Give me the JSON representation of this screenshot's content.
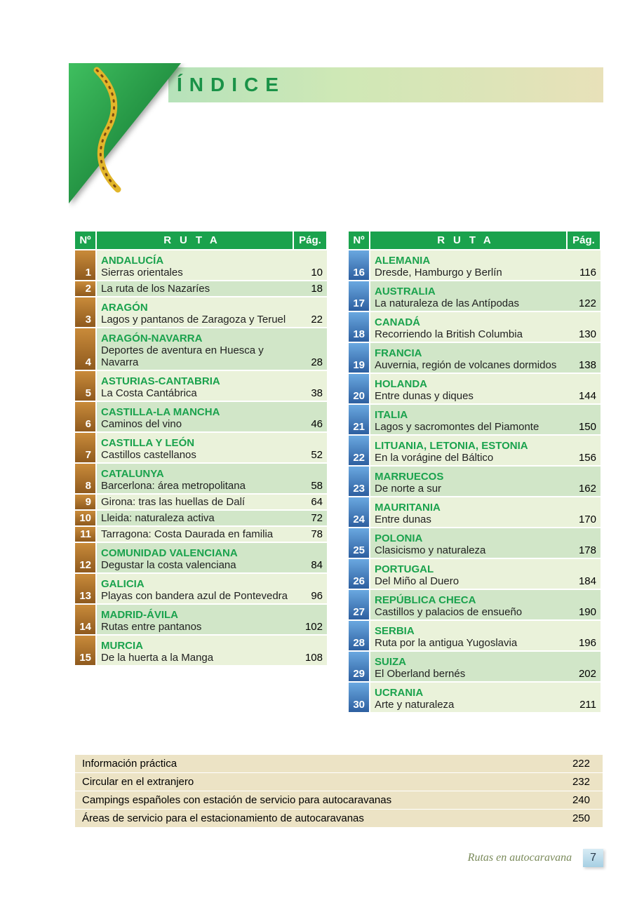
{
  "title": "ÍNDICE",
  "headers": {
    "num": "Nº",
    "ruta": "RUTA",
    "pag": "Pág."
  },
  "leftColumn": {
    "numCellGradient": [
      "#c98b3a",
      "#8f5a1e"
    ]
  },
  "rightColumn": {
    "numCellGradient": [
      "#6aa8e0",
      "#2d5fa0"
    ]
  },
  "rowColors": {
    "even": "#eaf2da",
    "odd": "#d1e6c8"
  },
  "left": [
    {
      "num": 1,
      "region": "ANDALUCÍA",
      "desc": "Sierras orientales",
      "page": 10,
      "sep": true
    },
    {
      "num": 2,
      "region": null,
      "desc": "La ruta de los Nazaríes",
      "page": 18,
      "sep": true
    },
    {
      "num": 3,
      "region": "ARAGÓN",
      "desc": "Lagos y pantanos de Zaragoza y Teruel",
      "page": 22,
      "sep": true
    },
    {
      "num": 4,
      "region": "ARAGÓN-NAVARRA",
      "desc": "Deportes de aventura en Huesca y Navarra",
      "page": 28,
      "sep": true
    },
    {
      "num": 5,
      "region": "ASTURIAS-CANTABRIA",
      "desc": "La Costa Cantábrica",
      "page": 38,
      "sep": true
    },
    {
      "num": 6,
      "region": "CASTILLA-LA MANCHA",
      "desc": "Caminos del vino",
      "page": 46,
      "sep": true
    },
    {
      "num": 7,
      "region": "CASTILLA Y LEÓN",
      "desc": "Castillos castellanos",
      "page": 52,
      "sep": true
    },
    {
      "num": 8,
      "region": "CATALUNYA",
      "desc": "Barcerlona: área metropolitana",
      "page": 58,
      "sep": true
    },
    {
      "num": 9,
      "region": null,
      "desc": "Girona: tras las huellas de Dalí",
      "page": 64,
      "sep": true
    },
    {
      "num": 10,
      "region": null,
      "desc": "Lleida: naturaleza activa",
      "page": 72,
      "sep": true
    },
    {
      "num": 11,
      "region": null,
      "desc": "Tarragona: Costa Daurada en familia",
      "page": 78,
      "sep": true
    },
    {
      "num": 12,
      "region": "COMUNIDAD VALENCIANA",
      "desc": "Degustar la costa valenciana",
      "page": 84,
      "sep": true
    },
    {
      "num": 13,
      "region": "GALICIA",
      "desc": "Playas con bandera azul de Pontevedra",
      "page": 96,
      "sep": true
    },
    {
      "num": 14,
      "region": "MADRID-ÁVILA",
      "desc": "Rutas entre pantanos",
      "page": 102,
      "sep": true
    },
    {
      "num": 15,
      "region": "MURCIA",
      "desc": "De la huerta a la Manga",
      "page": 108,
      "sep": true
    }
  ],
  "right": [
    {
      "num": 16,
      "region": "ALEMANIA",
      "desc": "Dresde, Hamburgo y Berlín",
      "page": 116,
      "sep": true
    },
    {
      "num": 17,
      "region": "AUSTRALIA",
      "desc": "La naturaleza de las Antípodas",
      "page": 122,
      "sep": true
    },
    {
      "num": 18,
      "region": "CANADÁ",
      "desc": "Recorriendo la British Columbia",
      "page": 130,
      "sep": true
    },
    {
      "num": 19,
      "region": "FRANCIA",
      "desc": "Auvernia, región de volcanes dormidos",
      "page": 138,
      "sep": true
    },
    {
      "num": 20,
      "region": "HOLANDA",
      "desc": "Entre dunas y diques",
      "page": 144,
      "sep": true
    },
    {
      "num": 21,
      "region": "ITALIA",
      "desc": "Lagos y sacromontes del Piamonte",
      "page": 150,
      "sep": true
    },
    {
      "num": 22,
      "region": "LITUANIA, LETONIA, ESTONIA",
      "desc": "En la vorágine del Báltico",
      "page": 156,
      "sep": true
    },
    {
      "num": 23,
      "region": "MARRUECOS",
      "desc": "De norte a sur",
      "page": 162,
      "sep": true
    },
    {
      "num": 24,
      "region": "MAURITANIA",
      "desc": "Entre dunas",
      "page": 170,
      "sep": true
    },
    {
      "num": 25,
      "region": "POLONIA",
      "desc": "Clasicismo y naturaleza",
      "page": 178,
      "sep": true
    },
    {
      "num": 26,
      "region": "PORTUGAL",
      "desc": "Del Miño al Duero",
      "page": 184,
      "sep": true
    },
    {
      "num": 27,
      "region": "REPÚBLICA CHECA",
      "desc": "Castillos y palacios de ensueño",
      "page": 190,
      "sep": true
    },
    {
      "num": 28,
      "region": "SERBIA",
      "desc": "Ruta por la antigua Yugoslavia",
      "page": 196,
      "sep": true
    },
    {
      "num": 29,
      "region": "SUIZA",
      "desc": "El Oberland bernés",
      "page": 202,
      "sep": true
    },
    {
      "num": 30,
      "region": "UCRANIA",
      "desc": "Arte y naturaleza",
      "page": 211,
      "sep": true
    }
  ],
  "appendix": [
    {
      "title": "Información práctica",
      "page": 222
    },
    {
      "title": "Circular en el extranjero",
      "page": 232
    },
    {
      "title": "Campings españoles con estación de servicio para autocaravanas",
      "page": 240
    },
    {
      "title": "Áreas de servicio para el estacionamiento de autocaravanas",
      "page": 250
    }
  ],
  "footer": {
    "text": "Rutas en autocaravana",
    "page": 7
  }
}
